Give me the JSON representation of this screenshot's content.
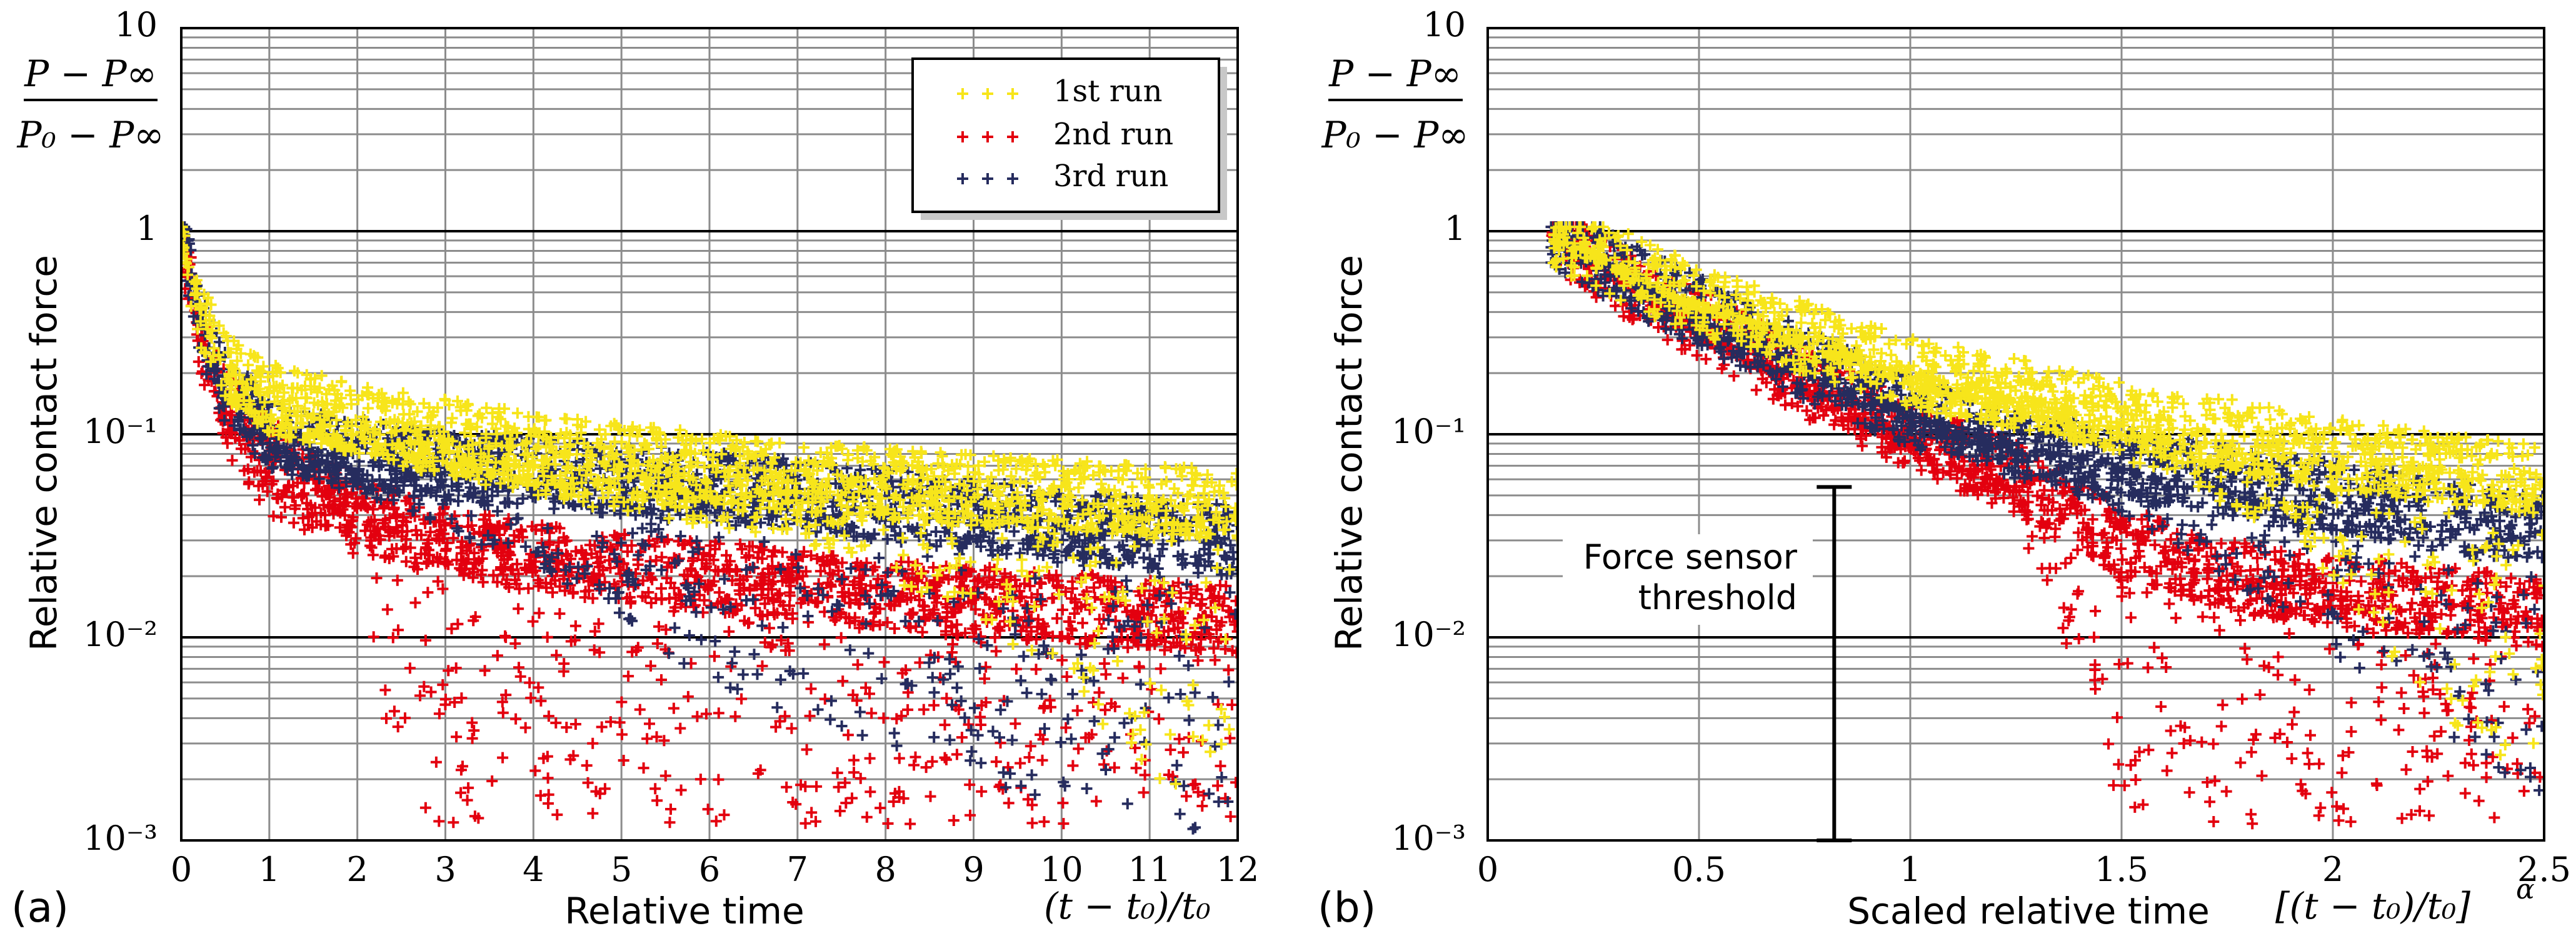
{
  "chart_data": [
    {
      "panel_label": "(a)",
      "type": "scatter",
      "xlabel": "Relative time",
      "xformula": "(t − t₀)/t₀",
      "ylabel": "Relative contact force",
      "yformula": {
        "num": "P − P∞",
        "den": "P₀ − P∞"
      },
      "xlim": [
        0,
        12
      ],
      "ylim": [
        0.001,
        10
      ],
      "yscale": "log",
      "xticks": [
        0,
        1,
        2,
        3,
        4,
        5,
        6,
        7,
        8,
        9,
        10,
        11,
        12
      ],
      "xtick_labels": [
        "0",
        "1",
        "2",
        "3",
        "4",
        "5",
        "6",
        "7",
        "8",
        "9",
        "10",
        "11",
        "12"
      ],
      "ytick_labels": {
        "t10": "10",
        "t1": "1",
        "t01": "10⁻¹",
        "t001": "10⁻²",
        "t0001": "10⁻³"
      },
      "legend_position": "top-right",
      "series": [
        {
          "name": "1st run",
          "color": "#f7e51b",
          "marker": "+",
          "trend": {
            "x": [
              0,
              0.2,
              0.5,
              1,
              2,
              3,
              4,
              5,
              6,
              7,
              8,
              9,
              10,
              11,
              12
            ],
            "y": [
              1,
              0.4,
              0.22,
              0.15,
              0.12,
              0.1,
              0.085,
              0.075,
              0.068,
              0.062,
              0.057,
              0.053,
              0.05,
              0.047,
              0.045
            ]
          },
          "scatter_min": {
            "x": [
              0,
              0.5,
              1,
              2,
              3,
              4,
              5,
              6,
              7,
              8,
              9,
              10,
              11,
              12
            ],
            "y": [
              0.8,
              0.15,
              0.1,
              0.08,
              0.06,
              0.05,
              0.04,
              0.035,
              0.03,
              0.02,
              0.012,
              0.006,
              0.002,
              0.0015
            ]
          }
        },
        {
          "name": "2nd run",
          "color": "#e3000f",
          "marker": "+",
          "trend": {
            "x": [
              0,
              0.2,
              0.5,
              1,
              2,
              3,
              4,
              5,
              6,
              7,
              8,
              9,
              10,
              11,
              12
            ],
            "y": [
              1,
              0.3,
              0.14,
              0.08,
              0.04,
              0.03,
              0.025,
              0.022,
              0.02,
              0.018,
              0.016,
              0.015,
              0.014,
              0.013,
              0.012
            ]
          },
          "scatter_min": {
            "x": [
              0,
              0.5,
              1,
              2,
              2.5,
              3,
              4,
              5,
              6,
              7,
              8,
              9,
              10,
              11,
              12
            ],
            "y": [
              0.8,
              0.08,
              0.04,
              0.025,
              0.0015,
              0.0012,
              0.0012,
              0.0012,
              0.0012,
              0.0012,
              0.0012,
              0.0012,
              0.0012,
              0.0012,
              0.0012
            ]
          }
        },
        {
          "name": "3rd run",
          "color": "#262c5e",
          "marker": "+",
          "trend": {
            "x": [
              0,
              0.2,
              0.5,
              1,
              2,
              3,
              4,
              5,
              6,
              7,
              8,
              9,
              10,
              11,
              12
            ],
            "y": [
              1,
              0.35,
              0.17,
              0.1,
              0.08,
              0.07,
              0.065,
              0.06,
              0.055,
              0.05,
              0.045,
              0.04,
              0.036,
              0.032,
              0.03
            ]
          },
          "scatter_min": {
            "x": [
              0,
              0.5,
              1,
              2,
              3,
              4,
              5,
              6,
              7,
              8,
              9,
              10,
              11,
              12
            ],
            "y": [
              0.8,
              0.12,
              0.07,
              0.05,
              0.035,
              0.02,
              0.012,
              0.006,
              0.004,
              0.003,
              0.002,
              0.0015,
              0.0012,
              0.001
            ]
          }
        }
      ]
    },
    {
      "panel_label": "(b)",
      "type": "scatter",
      "xlabel": "Scaled relative time",
      "xformula": "[(t − t₀)/t₀]",
      "xformula_exp": "α",
      "ylabel": "Relative contact force",
      "yformula": {
        "num": "P − P∞",
        "den": "P₀ − P∞"
      },
      "xlim": [
        0,
        2.5
      ],
      "ylim": [
        0.001,
        10
      ],
      "yscale": "log",
      "xticks": [
        0,
        0.5,
        1,
        1.5,
        2,
        2.5
      ],
      "xtick_labels": [
        "0",
        "0.5",
        "1",
        "1.5",
        "2",
        "2.5"
      ],
      "ytick_labels": {
        "t10": "10",
        "t1": "1",
        "t01": "10⁻¹",
        "t001": "10⁻²",
        "t0001": "10⁻³"
      },
      "annotation": {
        "text": [
          "Force sensor",
          "threshold"
        ],
        "x": 0.82,
        "y_top": 0.055,
        "y_bottom": 0.001
      },
      "series": [
        {
          "name": "1st run",
          "color": "#f7e51b",
          "marker": "+",
          "trend": {
            "x": [
              0.15,
              0.3,
              0.5,
              0.75,
              1,
              1.25,
              1.5,
              1.75,
              2,
              2.25,
              2.5
            ],
            "y": [
              1,
              0.7,
              0.45,
              0.3,
              0.2,
              0.16,
              0.12,
              0.1,
              0.08,
              0.068,
              0.06
            ]
          },
          "scatter_min": {
            "x": [
              0.15,
              0.5,
              1,
              1.4,
              1.6,
              1.8,
              2,
              2.2,
              2.4,
              2.5
            ],
            "y": [
              0.9,
              0.4,
              0.17,
              0.1,
              0.06,
              0.04,
              0.02,
              0.005,
              0.002,
              0.002
            ]
          }
        },
        {
          "name": "2nd run",
          "color": "#e3000f",
          "marker": "+",
          "trend": {
            "x": [
              0.15,
              0.3,
              0.5,
              0.75,
              1,
              1.25,
              1.5,
              1.75,
              2,
              2.25,
              2.5
            ],
            "y": [
              1,
              0.6,
              0.35,
              0.18,
              0.1,
              0.06,
              0.03,
              0.02,
              0.017,
              0.015,
              0.013
            ]
          },
          "scatter_min": {
            "x": [
              0.15,
              0.5,
              1,
              1.25,
              1.4,
              1.5,
              1.75,
              2,
              2.25,
              2.5
            ],
            "y": [
              0.9,
              0.3,
              0.08,
              0.04,
              0.006,
              0.0012,
              0.0012,
              0.0012,
              0.0012,
              0.0012
            ]
          }
        },
        {
          "name": "3rd run",
          "color": "#262c5e",
          "marker": "+",
          "trend": {
            "x": [
              0.15,
              0.3,
              0.5,
              0.75,
              1,
              1.25,
              1.5,
              1.75,
              2,
              2.25,
              2.5
            ],
            "y": [
              1,
              0.65,
              0.4,
              0.22,
              0.13,
              0.09,
              0.07,
              0.06,
              0.05,
              0.04,
              0.035
            ]
          },
          "scatter_min": {
            "x": [
              0.15,
              0.5,
              1,
              1.25,
              1.5,
              1.75,
              2,
              2.25,
              2.5
            ],
            "y": [
              0.9,
              0.35,
              0.11,
              0.07,
              0.04,
              0.02,
              0.008,
              0.003,
              0.0015
            ]
          }
        }
      ]
    }
  ],
  "legend": {
    "items": [
      {
        "name": "1st run",
        "color": "#f7e51b"
      },
      {
        "name": "2nd run",
        "color": "#e3000f"
      },
      {
        "name": "3rd run",
        "color": "#262c5e"
      }
    ]
  }
}
